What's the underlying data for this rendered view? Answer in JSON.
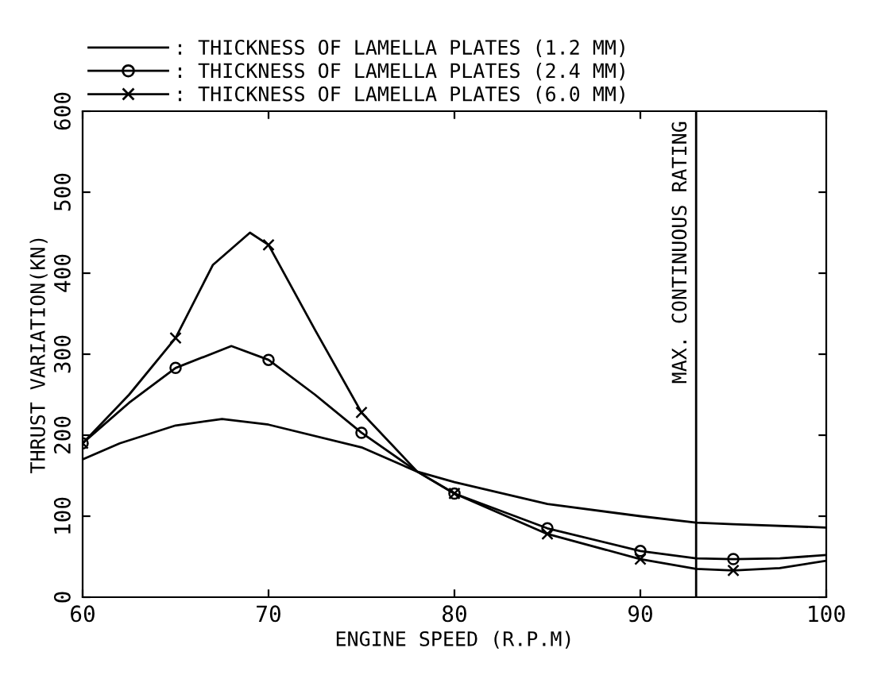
{
  "chart_data": {
    "type": "line",
    "xlabel": "ENGINE SPEED (R.P.M)",
    "ylabel": "THRUST VARIATION(KN)",
    "xlim": [
      60,
      100
    ],
    "xticks": [
      60,
      70,
      80,
      90,
      100
    ],
    "ylim": [
      0,
      600
    ],
    "yticks": [
      0,
      100,
      200,
      300,
      400,
      500,
      600
    ],
    "grid": false,
    "legend": "top",
    "ref_lines": [
      {
        "axis": "x",
        "value": 93,
        "label": "MAX. CONTINUOUS RATING",
        "color": "#000000"
      }
    ],
    "series": [
      {
        "name": ": THICKNESS OF LAMELLA PLATES (1.2 MM)",
        "color": "#000000",
        "x": [
          60,
          62,
          65,
          67.5,
          70,
          75,
          78,
          80,
          85,
          90,
          93,
          95,
          100
        ],
        "values": [
          170,
          190,
          212,
          220,
          213,
          185,
          155,
          142,
          115,
          100,
          92,
          90,
          86
        ]
      },
      {
        "color": "#000000",
        "x": [
          60,
          62.5,
          65,
          68,
          70,
          72.5,
          75,
          78,
          80,
          85,
          90,
          93,
          95,
          97.5,
          100
        ],
        "values": [
          190,
          240,
          283,
          310,
          293,
          250,
          203,
          155,
          128,
          85,
          57,
          48,
          47,
          48,
          52
        ]
      },
      {
        "name": ": THICKNESS OF LAMELLA PLATES (2.4 MM)",
        "type": "scatter",
        "color": "#000000",
        "marker": "circle",
        "x": [
          60,
          65,
          70,
          75,
          80,
          85,
          90,
          95
        ],
        "values": [
          190,
          283,
          293,
          203,
          128,
          85,
          57,
          47
        ]
      },
      {
        "color": "#000000",
        "x": [
          60,
          62.5,
          65,
          67,
          69,
          70,
          72.5,
          75,
          78,
          80,
          85,
          90,
          93,
          95,
          97.5,
          100
        ],
        "values": [
          190,
          250,
          320,
          410,
          450,
          435,
          330,
          228,
          155,
          128,
          78,
          47,
          35,
          33,
          36,
          45
        ]
      },
      {
        "name": ": THICKNESS OF LAMELLA PLATES (6.0 MM)",
        "type": "scatter",
        "color": "#000000",
        "marker": "cross",
        "x": [
          60,
          65,
          70,
          75,
          80,
          85,
          90,
          95
        ],
        "values": [
          190,
          320,
          435,
          228,
          128,
          78,
          47,
          33
        ]
      }
    ]
  }
}
